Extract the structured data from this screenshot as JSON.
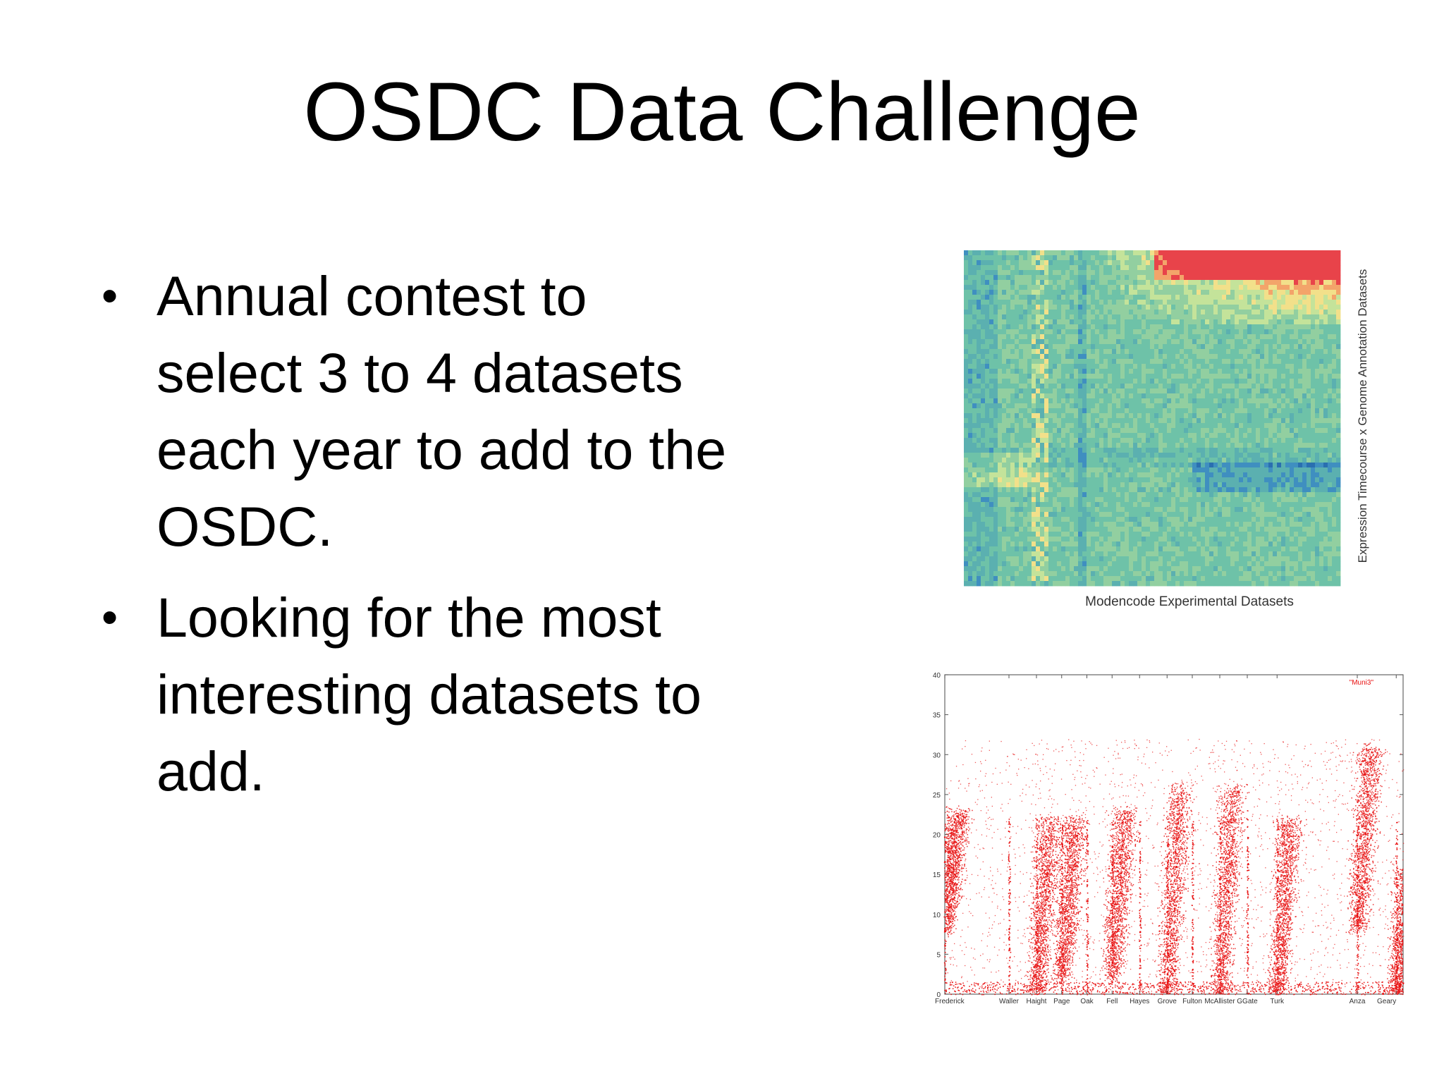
{
  "slide": {
    "title": "OSDC Data Challenge",
    "bullets": [
      {
        "lines": [
          "Annual contest to",
          "select 3 to 4 datasets",
          "each year  to add to the",
          "OSDC."
        ]
      },
      {
        "lines": [
          "Looking for the most",
          "interesting datasets to",
          "add."
        ]
      }
    ]
  },
  "chart_data": [
    {
      "type": "heatmap",
      "xlabel": "Modencode Experimental Datasets",
      "ylabel": "Expression Timecourse x Genome Annotation Datasets",
      "colors": {
        "low": "#2a6fb0",
        "mid": "#6ec2a8",
        "midhigh": "#f2e08a",
        "high": "#e8434a"
      }
    },
    {
      "type": "scatter",
      "title": "",
      "legend": "\"Muni3\"",
      "legend_position": "top-right",
      "point_color": "#e81010",
      "ylim": [
        0,
        40
      ],
      "yticks": [
        0,
        5,
        10,
        15,
        20,
        25,
        30,
        35,
        40
      ],
      "xtick_labels": [
        "Frederick",
        "Waller",
        "Haight",
        "Page",
        "Oak",
        "Fell",
        "Hayes",
        "Grove",
        "Fulton",
        "McAllister",
        "GGate",
        "Turk",
        "Anza",
        "Geary"
      ],
      "clusters": [
        {
          "x": "Frederick",
          "ylow": 8,
          "yhigh": 23
        },
        {
          "x": "Haight",
          "ylow": 0,
          "yhigh": 22
        },
        {
          "x": "Page",
          "ylow": 2,
          "yhigh": 22
        },
        {
          "x": "Fell",
          "ylow": 2,
          "yhigh": 23
        },
        {
          "x": "Grove",
          "ylow": 0,
          "yhigh": 26
        },
        {
          "x": "McAllister",
          "ylow": 0,
          "yhigh": 26
        },
        {
          "x": "Turk",
          "ylow": 0,
          "yhigh": 22
        },
        {
          "x": "Anza",
          "ylow": 8,
          "yhigh": 31
        },
        {
          "x": "Geary",
          "ylow": 0,
          "yhigh": 16
        }
      ]
    }
  ]
}
